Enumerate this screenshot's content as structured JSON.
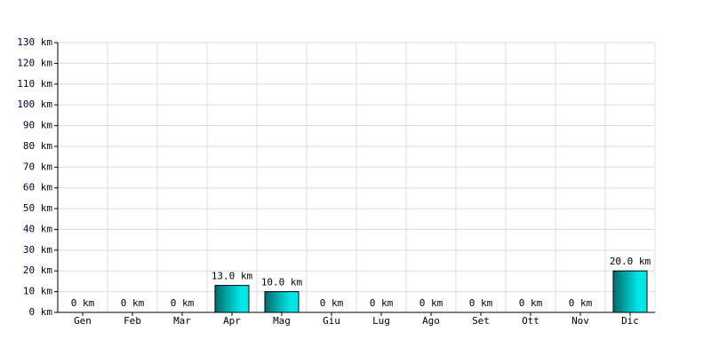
{
  "chart_data": {
    "type": "bar",
    "categories": [
      "Gen",
      "Feb",
      "Mar",
      "Apr",
      "Mag",
      "Giu",
      "Lug",
      "Ago",
      "Set",
      "Ott",
      "Nov",
      "Dic"
    ],
    "values": [
      0,
      0,
      0,
      13,
      10,
      0,
      0,
      0,
      0,
      0,
      0,
      20
    ],
    "value_labels": [
      "0 km",
      "0 km",
      "0 km",
      "13.0 km",
      "10.0 km",
      "0 km",
      "0 km",
      "0 km",
      "0 km",
      "0 km",
      "0 km",
      "20.0 km"
    ],
    "color": "#00e6e6",
    "ylim": [
      0,
      130
    ],
    "yticks": [
      {
        "value": 0,
        "label": "0 km"
      },
      {
        "value": 10,
        "label": "10 km"
      },
      {
        "value": 20,
        "label": "20 km"
      },
      {
        "value": 30,
        "label": "30 km"
      },
      {
        "value": 40,
        "label": "40 km"
      },
      {
        "value": 50,
        "label": "50 km"
      },
      {
        "value": 60,
        "label": "60 km"
      },
      {
        "value": 70,
        "label": "70 km"
      },
      {
        "value": 80,
        "label": "80 km"
      },
      {
        "value": 90,
        "label": "90 km"
      },
      {
        "value": 100,
        "label": "100 km"
      },
      {
        "value": 110,
        "label": "110 km"
      },
      {
        "value": 120,
        "label": "120 km"
      },
      {
        "value": 130,
        "label": "130 km"
      }
    ],
    "grid": true
  }
}
